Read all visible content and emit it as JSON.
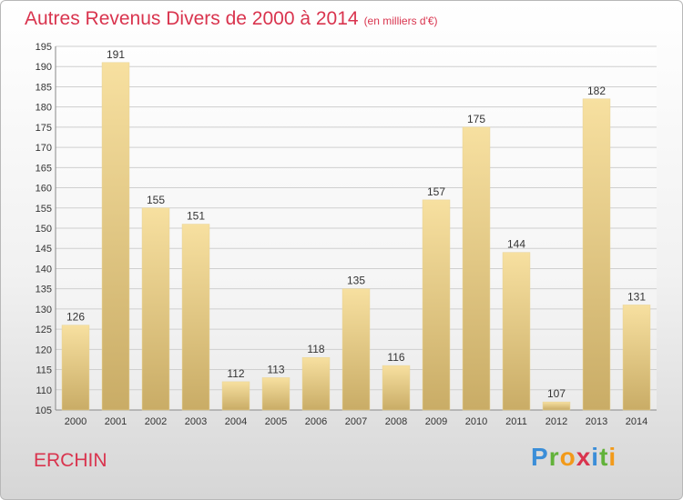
{
  "chart_data": {
    "type": "bar",
    "title": "Autres Revenus Divers de 2000 à 2014",
    "subtitle": "(en milliers d'€)",
    "categories": [
      "2000",
      "2001",
      "2002",
      "2003",
      "2004",
      "2005",
      "2006",
      "2007",
      "2008",
      "2009",
      "2010",
      "2011",
      "2012",
      "2013",
      "2014"
    ],
    "values": [
      126,
      191,
      155,
      151,
      112,
      113,
      118,
      135,
      116,
      157,
      175,
      144,
      107,
      182,
      131
    ],
    "ylim": [
      105,
      195
    ],
    "yticks": [
      105,
      110,
      115,
      120,
      125,
      130,
      135,
      140,
      145,
      150,
      155,
      160,
      165,
      170,
      175,
      180,
      185,
      190,
      195
    ],
    "grid": true,
    "colors": {
      "bar_top": "#f7e0a0",
      "bar_bottom": "#c9ac66",
      "grid": "#cfcfcf",
      "title": "#d9344e"
    }
  },
  "location": "ERCHIN",
  "logo": {
    "parts": [
      "P",
      "r",
      "o",
      "x",
      "i",
      "t",
      "i"
    ]
  }
}
